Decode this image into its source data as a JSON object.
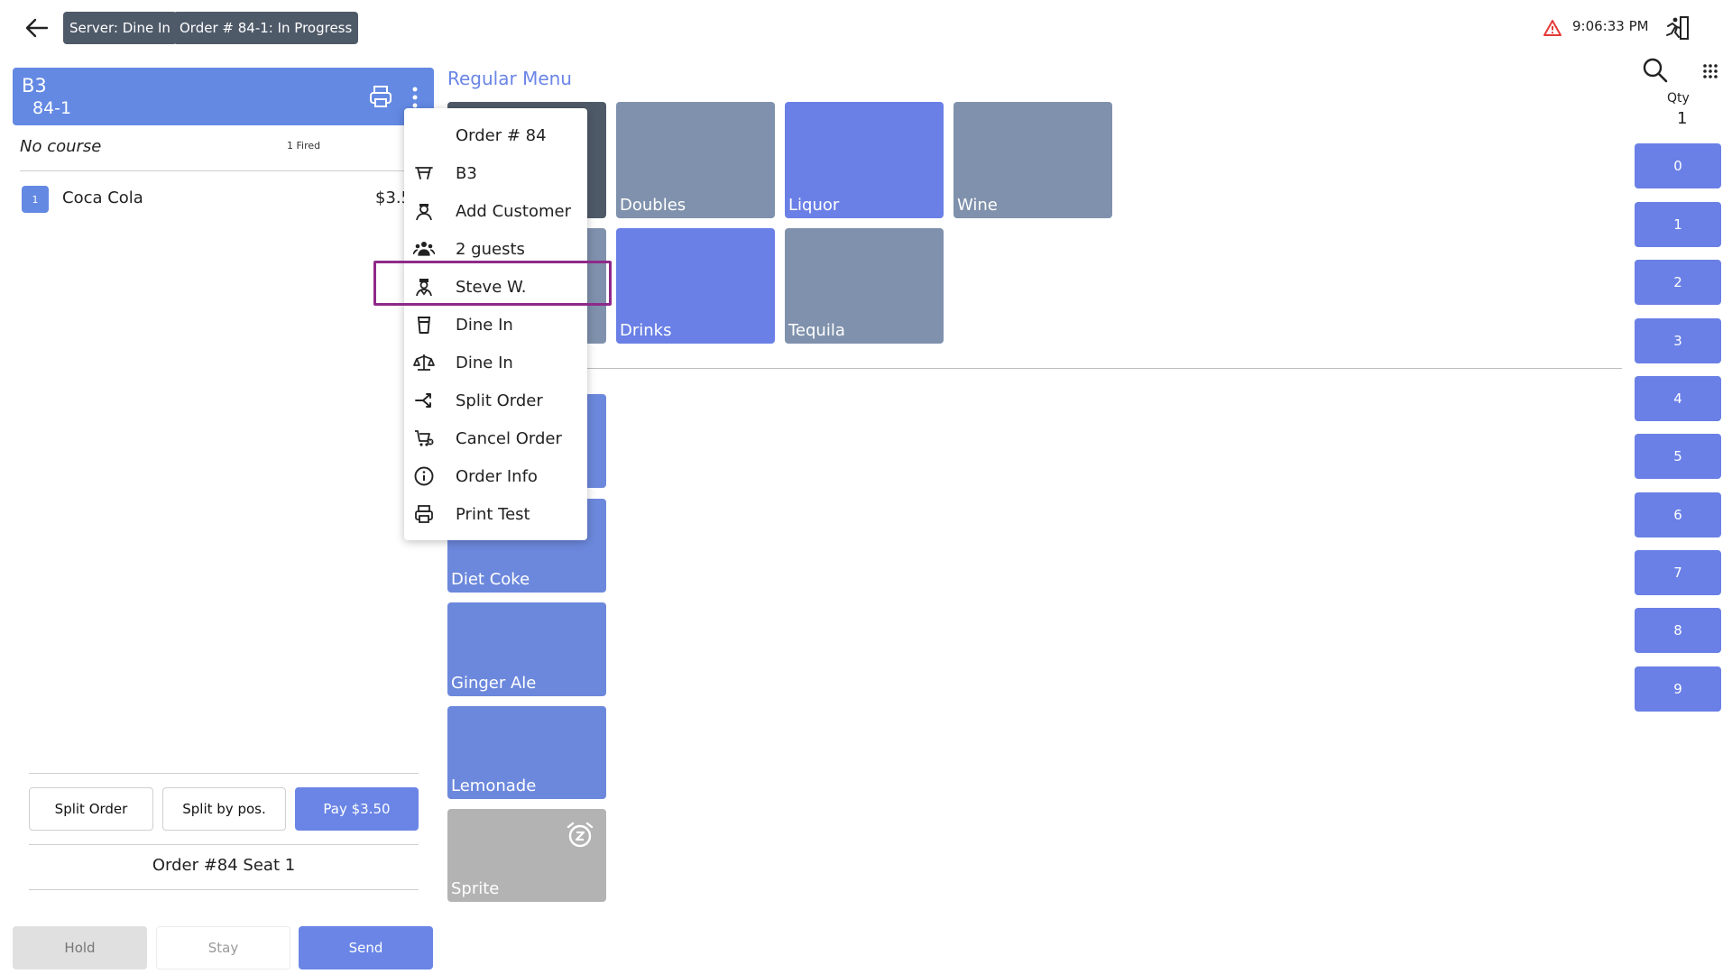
{
  "topbar": {
    "server_chip": "Server: Dine In",
    "order_chip": "Order # 84-1: In Progress",
    "time": "9:06:33 PM"
  },
  "ticket": {
    "table": "B3",
    "number": "84-1",
    "course": "No course",
    "fired": "1 Fired",
    "items": [
      {
        "qty": "1",
        "name": "Coca Cola",
        "price": "$3.50"
      }
    ]
  },
  "footer": {
    "split_order": "Split Order",
    "split_by_pos": "Split by pos.",
    "pay": "Pay $3.50",
    "order_seat": "Order #84 Seat 1",
    "hold": "Hold",
    "stay": "Stay",
    "send": "Send"
  },
  "menu": {
    "title": "Regular Menu",
    "categories": [
      "Doubles",
      "Liquor",
      "Wine",
      "Drinks",
      "Tequila"
    ],
    "items": [
      "Diet Coke",
      "Ginger Ale",
      "Lemonade",
      "Sprite"
    ]
  },
  "qty": {
    "label": "Qty",
    "value": "1"
  },
  "numpad": [
    "0",
    "1",
    "2",
    "3",
    "4",
    "5",
    "6",
    "7",
    "8",
    "9"
  ],
  "popup_menu": [
    {
      "label": "Order # 84",
      "icon": "none"
    },
    {
      "label": "B3",
      "icon": "table-icon"
    },
    {
      "label": "Add Customer",
      "icon": "customer-icon"
    },
    {
      "label": "2 guests",
      "icon": "guests-icon"
    },
    {
      "label": "Steve W.",
      "icon": "server-icon"
    },
    {
      "label": "Dine In",
      "icon": "cup-icon"
    },
    {
      "label": "Dine In",
      "icon": "scale-icon"
    },
    {
      "label": "Split Order",
      "icon": "split-icon"
    },
    {
      "label": "Cancel Order",
      "icon": "cart-cancel-icon"
    },
    {
      "label": "Order Info",
      "icon": "info-icon"
    },
    {
      "label": "Print Test",
      "icon": "printer-icon"
    }
  ],
  "colors": {
    "accent": "#6a80e6",
    "chip": "#4f5a69",
    "highlight": "#8e2a8a",
    "alert": "#e53935"
  }
}
